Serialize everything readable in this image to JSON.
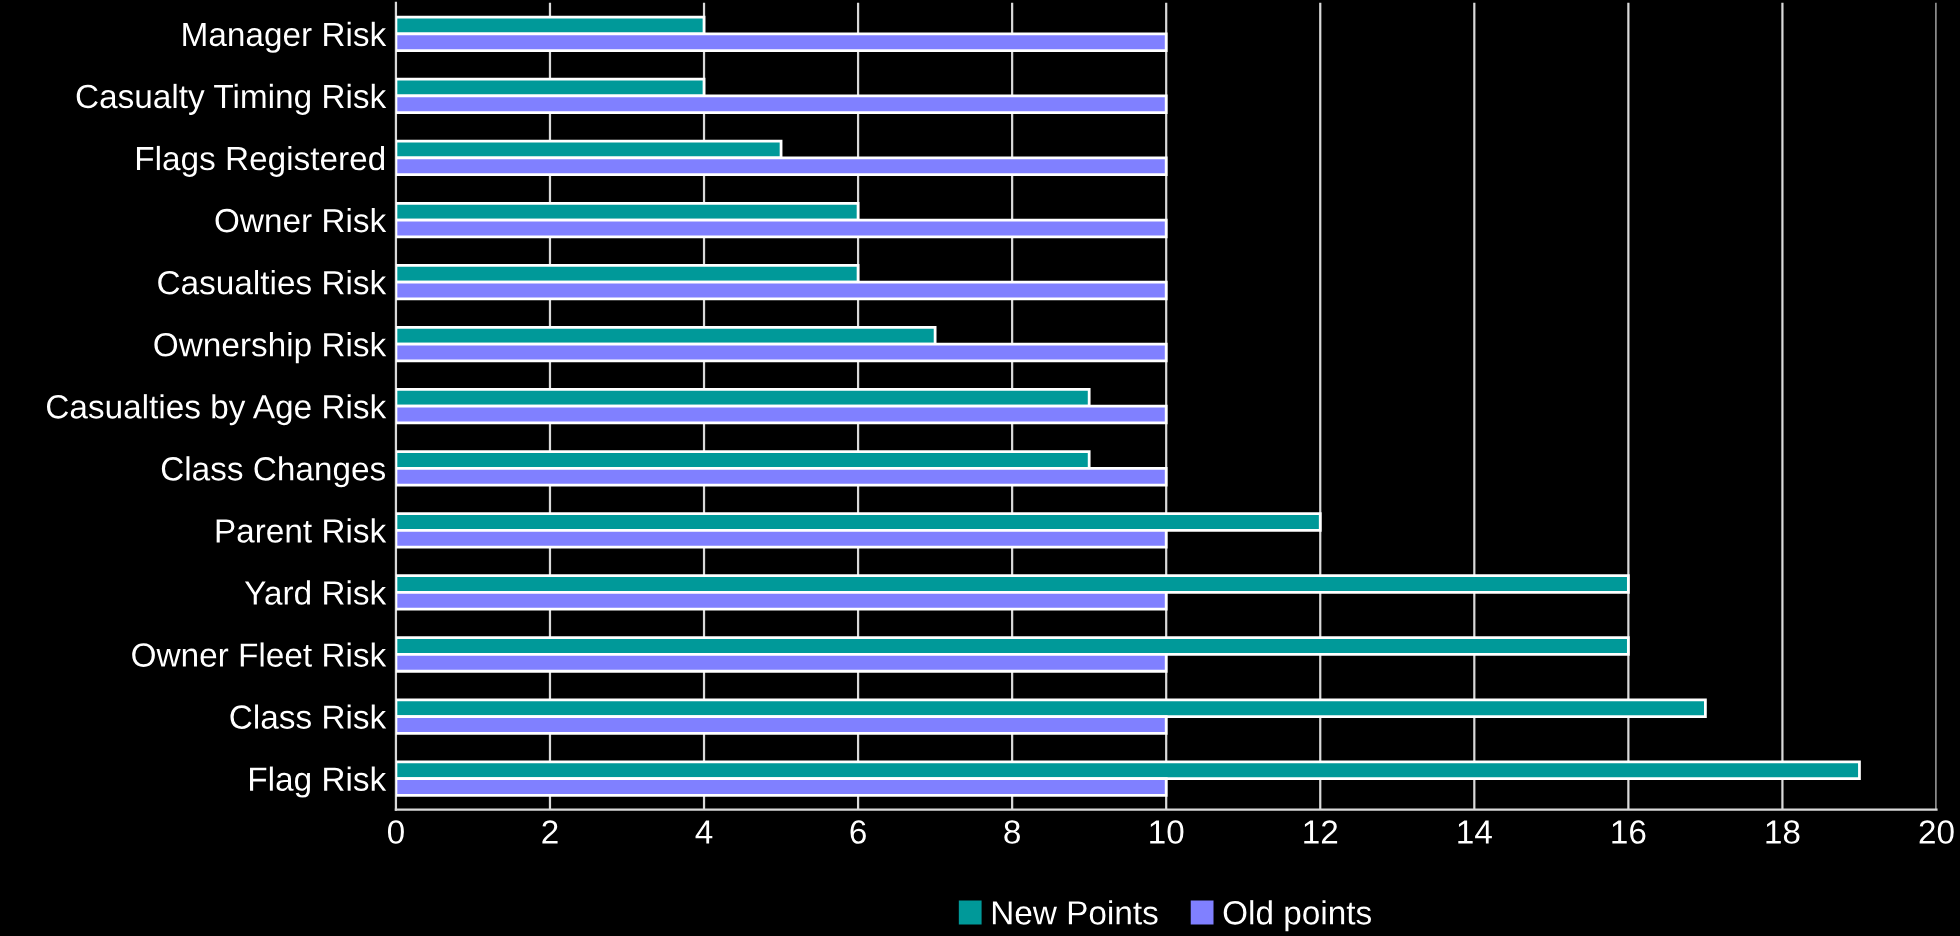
{
  "chart_data": {
    "type": "bar",
    "orientation": "horizontal",
    "categories": [
      "Manager Risk",
      "Casualty Timing Risk",
      "Flags Registered",
      "Owner Risk",
      "Casualties Risk",
      "Ownership Risk",
      "Casualties by Age Risk",
      "Class Changes",
      "Parent Risk",
      "Yard Risk",
      "Owner Fleet Risk",
      "Class Risk",
      "Flag Risk"
    ],
    "series": [
      {
        "name": "New Points",
        "color": "#009999",
        "values": [
          4,
          4,
          5,
          6,
          6,
          7,
          9,
          9,
          12,
          16,
          16,
          17,
          19
        ]
      },
      {
        "name": "Old points",
        "color": "#8080ff",
        "values": [
          10,
          10,
          10,
          10,
          10,
          10,
          10,
          10,
          10,
          10,
          10,
          10,
          10
        ]
      }
    ],
    "xlim": [
      0,
      20
    ],
    "xticks": [
      0,
      2,
      4,
      6,
      8,
      10,
      12,
      14,
      16,
      18,
      20
    ],
    "grid": "x",
    "legend": "bottom"
  }
}
